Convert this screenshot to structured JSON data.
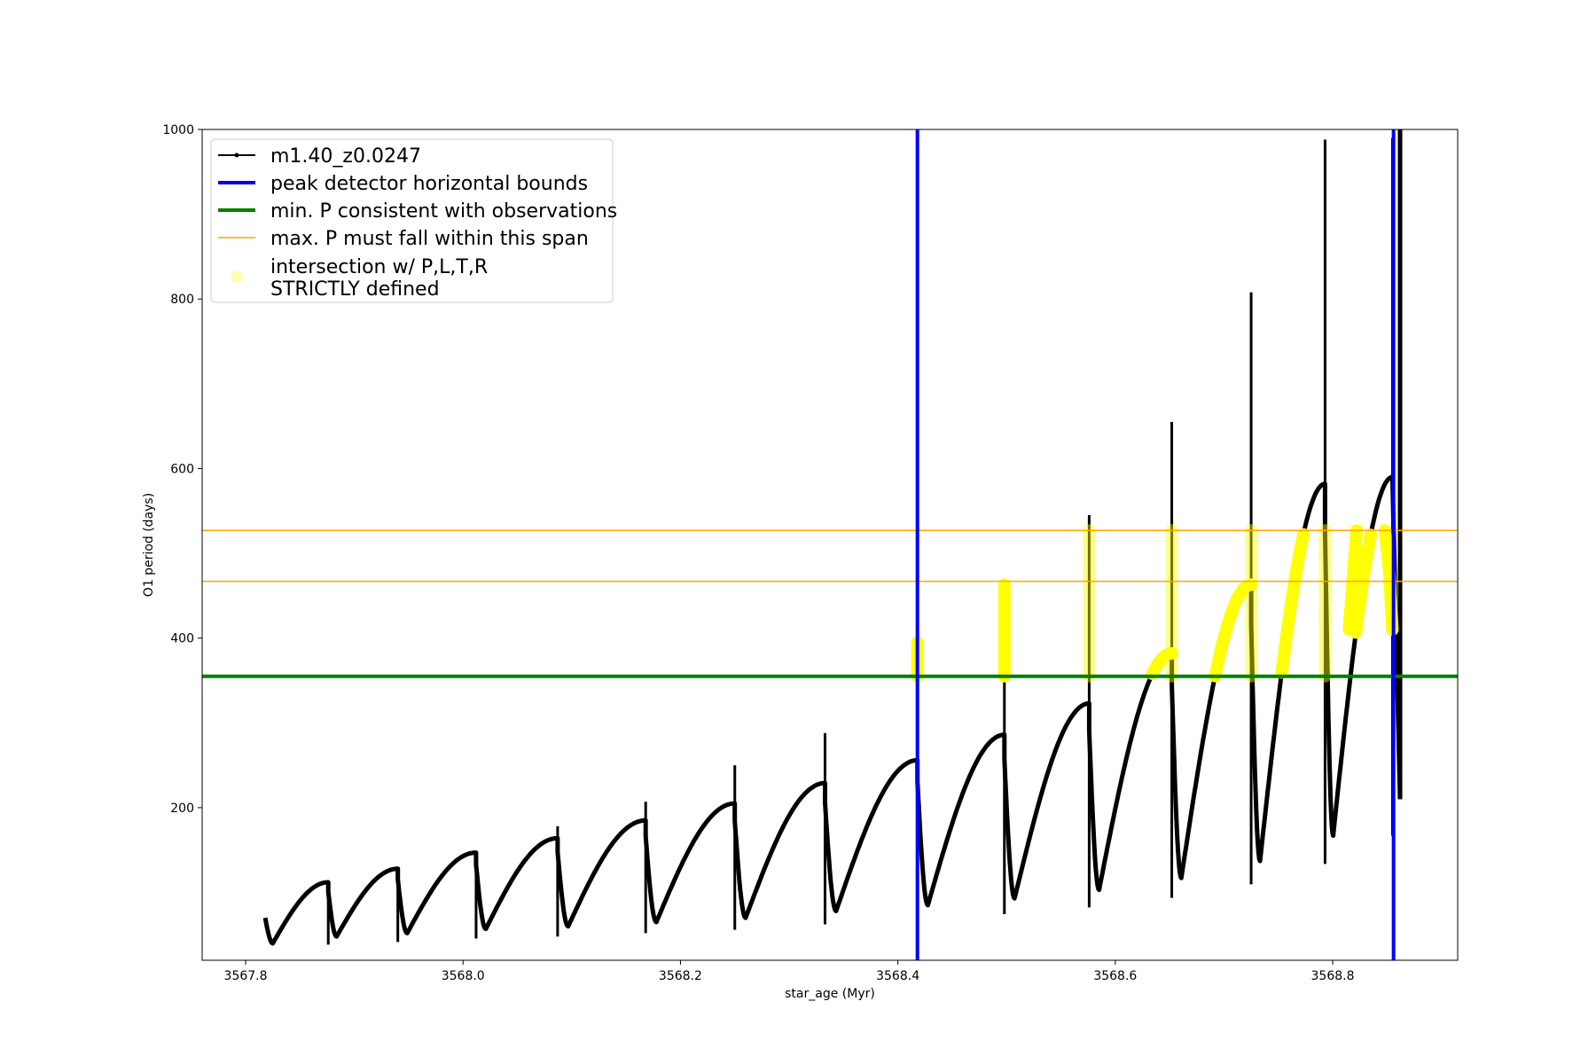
{
  "chart_data": {
    "type": "line",
    "xlabel": "star_age (Myr)",
    "ylabel": "O1 period (days)",
    "xlim": [
      3567.76,
      3568.915
    ],
    "ylim": [
      20,
      1000
    ],
    "x_ticks": [
      3567.8,
      3568.0,
      3568.2,
      3568.4,
      3568.6,
      3568.8
    ],
    "x_tick_labels": [
      "3567.8",
      "3568.0",
      "3568.2",
      "3568.4",
      "3568.6",
      "3568.8"
    ],
    "y_ticks": [
      200,
      400,
      600,
      800,
      1000
    ],
    "y_tick_labels": [
      "200",
      "400",
      "600",
      "800",
      "1000"
    ],
    "grid": false,
    "legend_position": "top-left",
    "legend": [
      {
        "label": "m1.40_z0.0247",
        "color": "#000000",
        "kind": "line-marker"
      },
      {
        "label": "peak detector horizontal bounds",
        "color": "#0000ff",
        "kind": "line"
      },
      {
        "label": "min. P consistent with observations",
        "color": "#008000",
        "kind": "line"
      },
      {
        "label": "max. P must fall within this span",
        "color": "#ffa500",
        "kind": "thin-line"
      },
      {
        "label": "intersection w/ P,L,T,R",
        "label2": "STRICTLY defined",
        "color": "#ffff00",
        "kind": "dot"
      }
    ],
    "series": [
      {
        "name": "m1.40_z0.0247",
        "color": "#000000",
        "cycles": [
          {
            "x0": 3567.818,
            "x1": 3567.876,
            "min": 40,
            "max": 112,
            "spike": 108
          },
          {
            "x0": 3567.876,
            "x1": 3567.94,
            "min": 48,
            "max": 128,
            "spike": 118
          },
          {
            "x0": 3567.94,
            "x1": 3568.012,
            "min": 52,
            "max": 147,
            "spike": 143
          },
          {
            "x0": 3568.012,
            "x1": 3568.087,
            "min": 57,
            "max": 164,
            "spike": 178
          },
          {
            "x0": 3568.087,
            "x1": 3568.168,
            "min": 60,
            "max": 185,
            "spike": 207
          },
          {
            "x0": 3568.168,
            "x1": 3568.25,
            "min": 65,
            "max": 205,
            "spike": 250
          },
          {
            "x0": 3568.25,
            "x1": 3568.333,
            "min": 70,
            "max": 229,
            "spike": 288
          },
          {
            "x0": 3568.333,
            "x1": 3568.418,
            "min": 78,
            "max": 256,
            "spike": 336
          },
          {
            "x0": 3568.418,
            "x1": 3568.498,
            "min": 85,
            "max": 286,
            "spike": 470
          },
          {
            "x0": 3568.498,
            "x1": 3568.576,
            "min": 93,
            "max": 323,
            "spike": 545
          },
          {
            "x0": 3568.576,
            "x1": 3568.652,
            "min": 103,
            "max": 382,
            "spike": 655
          },
          {
            "x0": 3568.652,
            "x1": 3568.725,
            "min": 117,
            "max": 463,
            "spike": 808
          },
          {
            "x0": 3568.725,
            "x1": 3568.793,
            "min": 137,
            "max": 582,
            "spike": 988
          },
          {
            "x0": 3568.793,
            "x1": 3568.855,
            "min": 167,
            "max": 590,
            "spike": 990
          }
        ],
        "final_drop": {
          "x": 3568.862,
          "y": 210
        }
      }
    ],
    "reference_lines": {
      "vertical_blue": [
        3568.418,
        3568.856
      ],
      "horizontal_green": 355,
      "horizontal_orange": [
        527,
        467
      ]
    }
  }
}
